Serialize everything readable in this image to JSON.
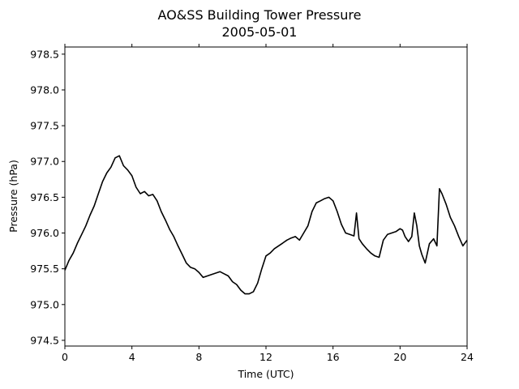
{
  "chart_data": {
    "type": "line",
    "title": "AO&SS Building Tower Pressure",
    "subtitle": "2005-05-01",
    "xlabel": "Time (UTC)",
    "ylabel": "Pressure (hPa)",
    "xlim": [
      0,
      24
    ],
    "ylim": [
      974.42,
      978.6
    ],
    "x_ticks": [
      0,
      4,
      8,
      12,
      16,
      20,
      24
    ],
    "y_ticks": [
      974.5,
      975.0,
      975.5,
      976.0,
      976.5,
      977.0,
      977.5,
      978.0,
      978.5
    ],
    "y_tick_labels": [
      "974.5",
      "975.0",
      "975.5",
      "976.0",
      "976.5",
      "977.0",
      "977.5",
      "978.0",
      "978.5"
    ],
    "grid": false,
    "line_color": "#000000",
    "series": [
      {
        "x": [
          0.0,
          0.25,
          0.5,
          0.75,
          1.0,
          1.25,
          1.5,
          1.75,
          2.0,
          2.25,
          2.5,
          2.75,
          3.0,
          3.25,
          3.5,
          3.75,
          4.0,
          4.25,
          4.5,
          4.75,
          5.0,
          5.25,
          5.5,
          5.75,
          6.0,
          6.25,
          6.5,
          6.75,
          7.0,
          7.25,
          7.5,
          7.75,
          8.0,
          8.25,
          8.5,
          8.75,
          9.0,
          9.25,
          9.5,
          9.75,
          10.0,
          10.25,
          10.5,
          10.75,
          11.0,
          11.25,
          11.5,
          11.75,
          12.0,
          12.25,
          12.5,
          12.75,
          13.0,
          13.25,
          13.5,
          13.75,
          14.0,
          14.25,
          14.5,
          14.75,
          15.0,
          15.25,
          15.5,
          15.75,
          16.0,
          16.25,
          16.5,
          16.75,
          17.0,
          17.25,
          17.4,
          17.55,
          17.75,
          18.0,
          18.25,
          18.5,
          18.75,
          19.0,
          19.25,
          19.5,
          19.75,
          20.0,
          20.15,
          20.3,
          20.5,
          20.7,
          20.85,
          21.0,
          21.15,
          21.3,
          21.5,
          21.75,
          22.0,
          22.2,
          22.35,
          22.5,
          22.75,
          23.0,
          23.25,
          23.5,
          23.75,
          24.0
        ],
        "y": [
          975.48,
          975.62,
          975.72,
          975.86,
          975.98,
          976.1,
          976.25,
          976.38,
          976.55,
          976.72,
          976.84,
          976.92,
          977.05,
          977.08,
          976.94,
          976.88,
          976.8,
          976.64,
          976.55,
          976.58,
          976.52,
          976.54,
          976.45,
          976.3,
          976.18,
          976.05,
          975.95,
          975.82,
          975.7,
          975.58,
          975.52,
          975.5,
          975.45,
          975.38,
          975.4,
          975.42,
          975.44,
          975.46,
          975.43,
          975.4,
          975.32,
          975.28,
          975.2,
          975.15,
          975.15,
          975.18,
          975.3,
          975.5,
          975.68,
          975.72,
          975.78,
          975.82,
          975.86,
          975.9,
          975.93,
          975.95,
          975.9,
          976.0,
          976.1,
          976.3,
          976.42,
          976.45,
          976.48,
          976.5,
          976.45,
          976.3,
          976.12,
          976.0,
          975.98,
          975.96,
          976.28,
          975.92,
          975.85,
          975.78,
          975.72,
          975.68,
          975.66,
          975.9,
          975.98,
          976.0,
          976.02,
          976.06,
          976.04,
          975.95,
          975.88,
          975.95,
          976.28,
          976.1,
          975.82,
          975.7,
          975.58,
          975.85,
          975.92,
          975.82,
          976.62,
          976.55,
          976.4,
          976.22,
          976.1,
          975.95,
          975.82,
          975.9
        ]
      }
    ]
  }
}
